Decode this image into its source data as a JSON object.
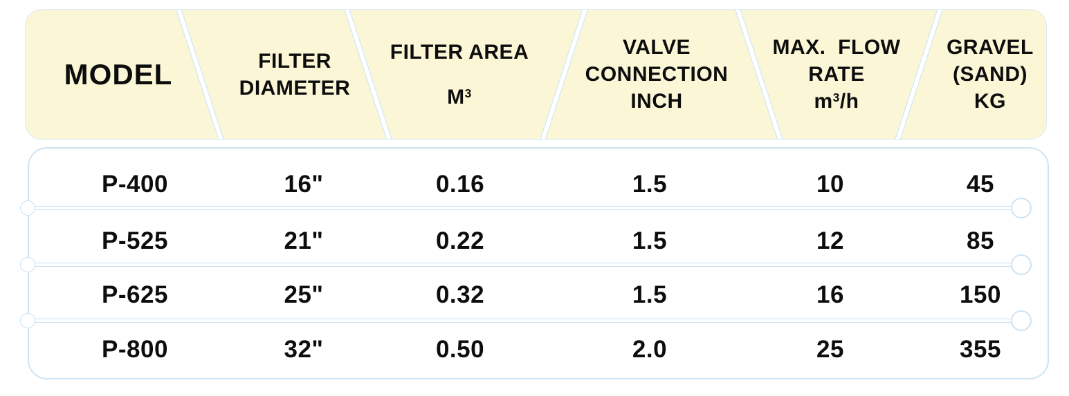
{
  "colors": {
    "header_bg": "#FAF6D6",
    "border_blue": "#CDE3F2",
    "text": "#0D0D0D"
  },
  "header": {
    "columns": [
      {
        "id": "model",
        "lines": [
          "MODEL"
        ]
      },
      {
        "id": "filter-diameter",
        "lines": [
          "FILTER",
          "DIAMETER"
        ]
      },
      {
        "id": "filter-area",
        "lines": [
          "FILTER AREA",
          {
            "text": "M",
            "sup": "3"
          }
        ]
      },
      {
        "id": "valve-connection",
        "lines": [
          "VALVE",
          "CONNECTION",
          "INCH"
        ]
      },
      {
        "id": "max-flow-rate",
        "lines": [
          "MAX.  FLOW",
          "RATE",
          {
            "text": "m",
            "sup": "3",
            "after": "/h"
          }
        ]
      },
      {
        "id": "gravel-sand",
        "lines": [
          "GRAVEL",
          "(SAND)",
          "KG"
        ]
      }
    ]
  },
  "chart_data": {
    "type": "table",
    "title": "Sand filter specification table",
    "columns": [
      "MODEL",
      "FILTER DIAMETER",
      "FILTER AREA M³",
      "VALVE CONNECTION INCH",
      "MAX. FLOW RATE m³/h",
      "GRAVEL (SAND) KG"
    ],
    "rows": [
      [
        "P-400",
        "16\"",
        "0.16",
        "1.5",
        "10",
        "45"
      ],
      [
        "P-525",
        "21\"",
        "0.22",
        "1.5",
        "12",
        "85"
      ],
      [
        "P-625",
        "25\"",
        "0.32",
        "1.5",
        "16",
        "150"
      ],
      [
        "P-800",
        "32\"",
        "0.50",
        "2.0",
        "25",
        "355"
      ]
    ]
  }
}
